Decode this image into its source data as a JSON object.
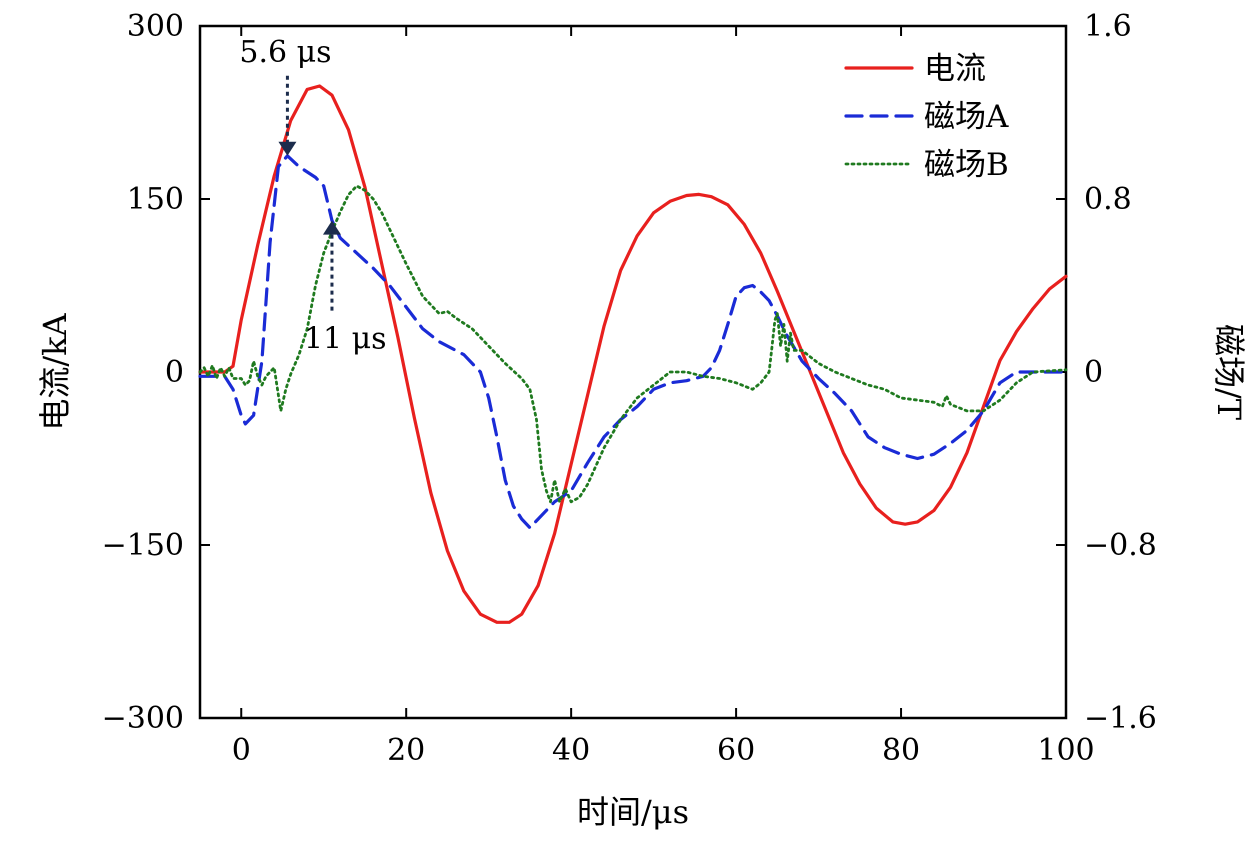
{
  "chart_data": {
    "type": "line",
    "xlabel": "时间/μs",
    "ylabel": "电流/kA",
    "y2label": "磁场/T",
    "xlim": [
      -5,
      100
    ],
    "ylim": [
      -300,
      300
    ],
    "y2lim": [
      -1.6,
      1.6
    ],
    "xticks": [
      0,
      20,
      40,
      60,
      80,
      100
    ],
    "yticks": [
      300,
      150,
      0,
      -150,
      -300
    ],
    "y2ticks": [
      1.6,
      0.8,
      0,
      -0.8,
      -1.6
    ],
    "ytick_labels": [
      "300",
      "150",
      "0",
      "−150",
      "−300"
    ],
    "y2tick_labels": [
      "1.6",
      "0.8",
      "0",
      "−0.8",
      "−1.6"
    ],
    "legend_position": "top-right",
    "grid": false,
    "series": [
      {
        "name": "电流",
        "axis": "left",
        "color": "#e8201e",
        "style": "solid",
        "points": [
          [
            -5,
            0
          ],
          [
            -2,
            0
          ],
          [
            -1,
            5
          ],
          [
            0,
            45
          ],
          [
            2,
            110
          ],
          [
            4,
            170
          ],
          [
            6,
            218
          ],
          [
            8,
            245
          ],
          [
            9.5,
            248
          ],
          [
            11,
            240
          ],
          [
            13,
            210
          ],
          [
            15,
            160
          ],
          [
            17,
            95
          ],
          [
            19,
            30
          ],
          [
            21,
            -40
          ],
          [
            23,
            -105
          ],
          [
            25,
            -155
          ],
          [
            27,
            -190
          ],
          [
            29,
            -210
          ],
          [
            31,
            -217
          ],
          [
            32.5,
            -217
          ],
          [
            34,
            -210
          ],
          [
            36,
            -185
          ],
          [
            38,
            -140
          ],
          [
            40,
            -80
          ],
          [
            42,
            -20
          ],
          [
            44,
            40
          ],
          [
            46,
            88
          ],
          [
            48,
            118
          ],
          [
            50,
            138
          ],
          [
            52,
            148
          ],
          [
            54,
            153
          ],
          [
            55.5,
            154
          ],
          [
            57,
            152
          ],
          [
            59,
            145
          ],
          [
            61,
            128
          ],
          [
            63,
            103
          ],
          [
            65,
            70
          ],
          [
            67,
            35
          ],
          [
            69,
            0
          ],
          [
            71,
            -35
          ],
          [
            73,
            -70
          ],
          [
            75,
            -97
          ],
          [
            77,
            -118
          ],
          [
            79,
            -130
          ],
          [
            80.5,
            -132
          ],
          [
            82,
            -130
          ],
          [
            84,
            -120
          ],
          [
            86,
            -100
          ],
          [
            88,
            -70
          ],
          [
            90,
            -30
          ],
          [
            92,
            10
          ],
          [
            94,
            35
          ],
          [
            96,
            55
          ],
          [
            98,
            72
          ],
          [
            100,
            83
          ]
        ]
      },
      {
        "name": "磁场A",
        "axis": "right",
        "color": "#1a2bd6",
        "style": "dashed",
        "points": [
          [
            -5,
            -0.02
          ],
          [
            -2,
            -0.02
          ],
          [
            -1,
            -0.08
          ],
          [
            0,
            -0.2
          ],
          [
            0.5,
            -0.24
          ],
          [
            1.5,
            -0.2
          ],
          [
            2.5,
            0.05
          ],
          [
            3.5,
            0.6
          ],
          [
            4.5,
            0.95
          ],
          [
            5.6,
            1.0
          ],
          [
            7,
            0.95
          ],
          [
            9,
            0.9
          ],
          [
            10,
            0.86
          ],
          [
            11,
            0.7
          ],
          [
            12,
            0.62
          ],
          [
            14,
            0.55
          ],
          [
            16,
            0.48
          ],
          [
            18,
            0.4
          ],
          [
            20,
            0.3
          ],
          [
            22,
            0.2
          ],
          [
            24,
            0.14
          ],
          [
            27,
            0.08
          ],
          [
            29,
            0.0
          ],
          [
            30,
            -0.12
          ],
          [
            31,
            -0.3
          ],
          [
            32,
            -0.5
          ],
          [
            33,
            -0.62
          ],
          [
            34,
            -0.68
          ],
          [
            35,
            -0.72
          ],
          [
            36,
            -0.68
          ],
          [
            38,
            -0.6
          ],
          [
            40,
            -0.55
          ],
          [
            42,
            -0.42
          ],
          [
            44,
            -0.3
          ],
          [
            46,
            -0.22
          ],
          [
            48,
            -0.16
          ],
          [
            50,
            -0.08
          ],
          [
            52,
            -0.05
          ],
          [
            54,
            -0.04
          ],
          [
            56,
            -0.02
          ],
          [
            57,
            0.02
          ],
          [
            58,
            0.1
          ],
          [
            59,
            0.22
          ],
          [
            60,
            0.35
          ],
          [
            61,
            0.39
          ],
          [
            62,
            0.4
          ],
          [
            63,
            0.37
          ],
          [
            64,
            0.33
          ],
          [
            65,
            0.26
          ],
          [
            66,
            0.18
          ],
          [
            68,
            0.05
          ],
          [
            70,
            -0.03
          ],
          [
            72,
            -0.1
          ],
          [
            74,
            -0.18
          ],
          [
            76,
            -0.3
          ],
          [
            78,
            -0.35
          ],
          [
            80,
            -0.38
          ],
          [
            82,
            -0.4
          ],
          [
            84,
            -0.38
          ],
          [
            86,
            -0.33
          ],
          [
            88,
            -0.27
          ],
          [
            90,
            -0.18
          ],
          [
            92,
            -0.05
          ],
          [
            94,
            0.0
          ],
          [
            100,
            0.0
          ]
        ]
      },
      {
        "name": "磁场B",
        "axis": "right",
        "color": "#1f7a1f",
        "style": "dotted",
        "points": [
          [
            -5,
            0.0
          ],
          [
            -4.5,
            0.02
          ],
          [
            -4,
            -0.02
          ],
          [
            -3.5,
            0.03
          ],
          [
            -3,
            -0.03
          ],
          [
            -2.5,
            0.02
          ],
          [
            -2,
            -0.02
          ],
          [
            -1.5,
            0.02
          ],
          [
            -1,
            -0.03
          ],
          [
            0,
            -0.03
          ],
          [
            0.5,
            -0.06
          ],
          [
            1,
            -0.04
          ],
          [
            1.5,
            0.05
          ],
          [
            2,
            -0.02
          ],
          [
            2.5,
            -0.06
          ],
          [
            3,
            -0.02
          ],
          [
            4,
            0.02
          ],
          [
            4.8,
            -0.18
          ],
          [
            5.4,
            -0.08
          ],
          [
            6,
            -0.01
          ],
          [
            7,
            0.08
          ],
          [
            8,
            0.2
          ],
          [
            9,
            0.4
          ],
          [
            10,
            0.55
          ],
          [
            11,
            0.65
          ],
          [
            12,
            0.74
          ],
          [
            13,
            0.82
          ],
          [
            14,
            0.86
          ],
          [
            15,
            0.84
          ],
          [
            16,
            0.8
          ],
          [
            17,
            0.74
          ],
          [
            18,
            0.66
          ],
          [
            20,
            0.5
          ],
          [
            22,
            0.35
          ],
          [
            24,
            0.27
          ],
          [
            25,
            0.28
          ],
          [
            26,
            0.25
          ],
          [
            28,
            0.2
          ],
          [
            30,
            0.12
          ],
          [
            32,
            0.04
          ],
          [
            34,
            -0.03
          ],
          [
            35,
            -0.08
          ],
          [
            35.8,
            -0.22
          ],
          [
            36.4,
            -0.45
          ],
          [
            37,
            -0.55
          ],
          [
            37.5,
            -0.6
          ],
          [
            38,
            -0.5
          ],
          [
            38.6,
            -0.6
          ],
          [
            39.3,
            -0.54
          ],
          [
            40,
            -0.6
          ],
          [
            41,
            -0.58
          ],
          [
            42,
            -0.52
          ],
          [
            44,
            -0.35
          ],
          [
            46,
            -0.22
          ],
          [
            48,
            -0.12
          ],
          [
            50,
            -0.06
          ],
          [
            52,
            0.0
          ],
          [
            54,
            0.0
          ],
          [
            56,
            -0.02
          ],
          [
            58,
            -0.03
          ],
          [
            60,
            -0.05
          ],
          [
            62,
            -0.08
          ],
          [
            63,
            -0.05
          ],
          [
            64,
            0.0
          ],
          [
            64.3,
            0.1
          ],
          [
            64.7,
            0.24
          ],
          [
            65,
            0.27
          ],
          [
            65.4,
            0.12
          ],
          [
            65.8,
            0.22
          ],
          [
            66.2,
            0.05
          ],
          [
            66.6,
            0.18
          ],
          [
            67,
            0.1
          ],
          [
            68,
            0.1
          ],
          [
            70,
            0.04
          ],
          [
            72,
            0.0
          ],
          [
            74,
            -0.03
          ],
          [
            76,
            -0.06
          ],
          [
            78,
            -0.08
          ],
          [
            80,
            -0.12
          ],
          [
            82,
            -0.13
          ],
          [
            84,
            -0.14
          ],
          [
            85,
            -0.16
          ],
          [
            85.5,
            -0.11
          ],
          [
            86,
            -0.15
          ],
          [
            88,
            -0.18
          ],
          [
            90,
            -0.18
          ],
          [
            92,
            -0.13
          ],
          [
            94,
            -0.05
          ],
          [
            96,
            0.0
          ],
          [
            100,
            0.01
          ]
        ]
      }
    ],
    "annotations": [
      {
        "text": "5.6 μs",
        "x": 5.6,
        "axis": "right",
        "y": 1.0,
        "arrow": "down"
      },
      {
        "text": "11 μs",
        "x": 11,
        "axis": "right",
        "y": 0.7,
        "arrow": "up"
      }
    ]
  }
}
